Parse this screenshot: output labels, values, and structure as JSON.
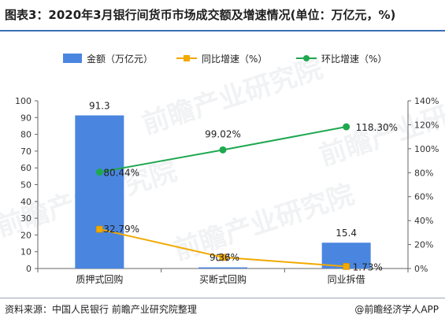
{
  "title": "图表3：2020年3月银行间货币市场成交额及增速情况(单位：万亿元，%)",
  "footer": {
    "source": "资料来源：中国人民银行 前瞻产业研究院整理",
    "brand": "@前瞻经济学人APP"
  },
  "watermark_text": "前瞻产业研究院",
  "colors": {
    "bar": "#4a86e0",
    "yoy": "#f2a900",
    "mom": "#1fa84f",
    "axis": "#666666"
  },
  "chart_data": {
    "type": "bar",
    "categories": [
      "质押式回购",
      "买断式回购",
      "同业拆借"
    ],
    "series": [
      {
        "name": "金额（万亿元）",
        "type": "bar",
        "axis": "left",
        "values": [
          91.3,
          0.7,
          15.4
        ],
        "labels": [
          "91.3",
          "0.7",
          "15.4"
        ]
      },
      {
        "name": "同比增速（%）",
        "type": "line",
        "axis": "right",
        "values": [
          32.79,
          9.36,
          1.73
        ],
        "labels": [
          "32.79%",
          "9.36%",
          "1.73%"
        ]
      },
      {
        "name": "环比增速（%）",
        "type": "line",
        "axis": "right",
        "values": [
          80.44,
          99.02,
          118.3
        ],
        "labels": [
          "80.44%",
          "99.02%",
          "118.30%"
        ]
      }
    ],
    "y_left": {
      "min": 0,
      "max": 100,
      "ticks": [
        "0",
        "10",
        "20",
        "30",
        "40",
        "50",
        "60",
        "70",
        "80",
        "90",
        "100"
      ]
    },
    "y_right": {
      "min": 0,
      "max": 140,
      "ticks": [
        "0%",
        "20%",
        "40%",
        "60%",
        "80%",
        "100%",
        "120%",
        "140%"
      ]
    },
    "legend_position": "top",
    "grid": false
  }
}
